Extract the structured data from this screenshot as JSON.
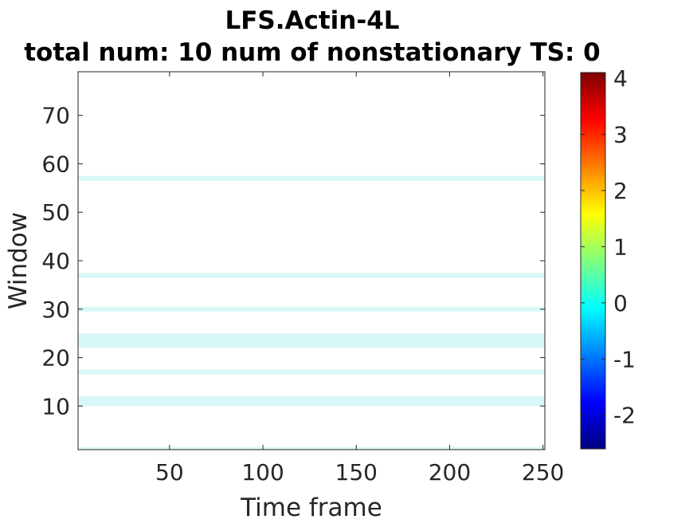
{
  "chart_data": {
    "type": "heatmap",
    "title": [
      "LFS.Actin-4L",
      "total num: 10 num of nonstationary TS: 0"
    ],
    "xlabel": "Time frame",
    "ylabel": "Window",
    "xlim": [
      1,
      251
    ],
    "ylim": [
      1,
      79
    ],
    "xticks": [
      50,
      100,
      150,
      200,
      250
    ],
    "yticks": [
      10,
      20,
      30,
      40,
      50,
      60,
      70
    ],
    "colorbar": {
      "colormap": "jet",
      "range": [
        -2.6,
        4.1
      ],
      "ticks": [
        -2,
        -1,
        0,
        1,
        2,
        3,
        4
      ]
    },
    "bands": [
      {
        "window_start": 0.5,
        "window_end": 1.5
      },
      {
        "window_start": 10,
        "window_end": 12
      },
      {
        "window_start": 16.5,
        "window_end": 17.5
      },
      {
        "window_start": 22,
        "window_end": 25
      },
      {
        "window_start": 29.5,
        "window_end": 30.5
      },
      {
        "window_start": 36.5,
        "window_end": 37.5
      },
      {
        "window_start": 56.5,
        "window_end": 57.5
      }
    ],
    "grid": false,
    "note_values": "non-band cells are blank (NaN); band cells are mostly near 0 (cyan) with faint variations"
  }
}
